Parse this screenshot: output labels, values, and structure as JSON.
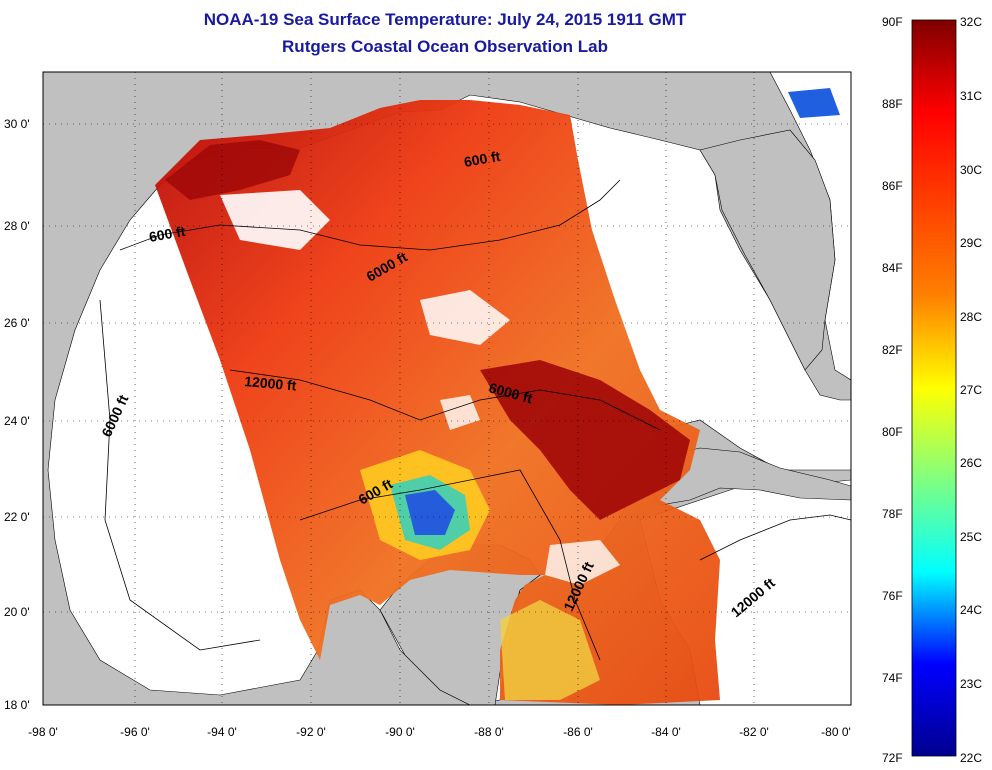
{
  "title": {
    "line1": "NOAA-19 Sea Surface Temperature:  July 24, 2015 1911 GMT",
    "line2": "Rutgers Coastal Ocean Observation Lab"
  },
  "map": {
    "lon_labels": [
      "-98 0'",
      "-96 0'",
      "-94 0'",
      "-92 0'",
      "-90 0'",
      "-88 0'",
      "-86 0'",
      "-84 0'",
      "-82 0'",
      "-80 0'"
    ],
    "lat_labels": [
      "30 0'",
      "28 0'",
      "26 0'",
      "24 0'",
      "22 0'",
      "20 0'",
      "18 0'"
    ],
    "contour_labels": [
      "600 ft",
      "600 ft",
      "600 ft",
      "6000 ft",
      "6000 ft",
      "6000 ft",
      "12000 ft",
      "12000 ft",
      "12000 ft"
    ],
    "colors": {
      "land": "#c0c0c0",
      "cloud": "#ffffff",
      "frame": "#000000"
    }
  },
  "colorbar": {
    "fahrenheit_labels": [
      "90F",
      "88F",
      "86F",
      "84F",
      "82F",
      "80F",
      "78F",
      "76F",
      "74F",
      "72F"
    ],
    "celsius_labels": [
      "32C",
      "31C",
      "30C",
      "29C",
      "28C",
      "27C",
      "26C",
      "25C",
      "24C",
      "23C",
      "22C"
    ],
    "colors": [
      "#7f0000",
      "#ff0000",
      "#ff8000",
      "#ffff00",
      "#00ffff",
      "#0000ff",
      "#00008f"
    ]
  }
}
